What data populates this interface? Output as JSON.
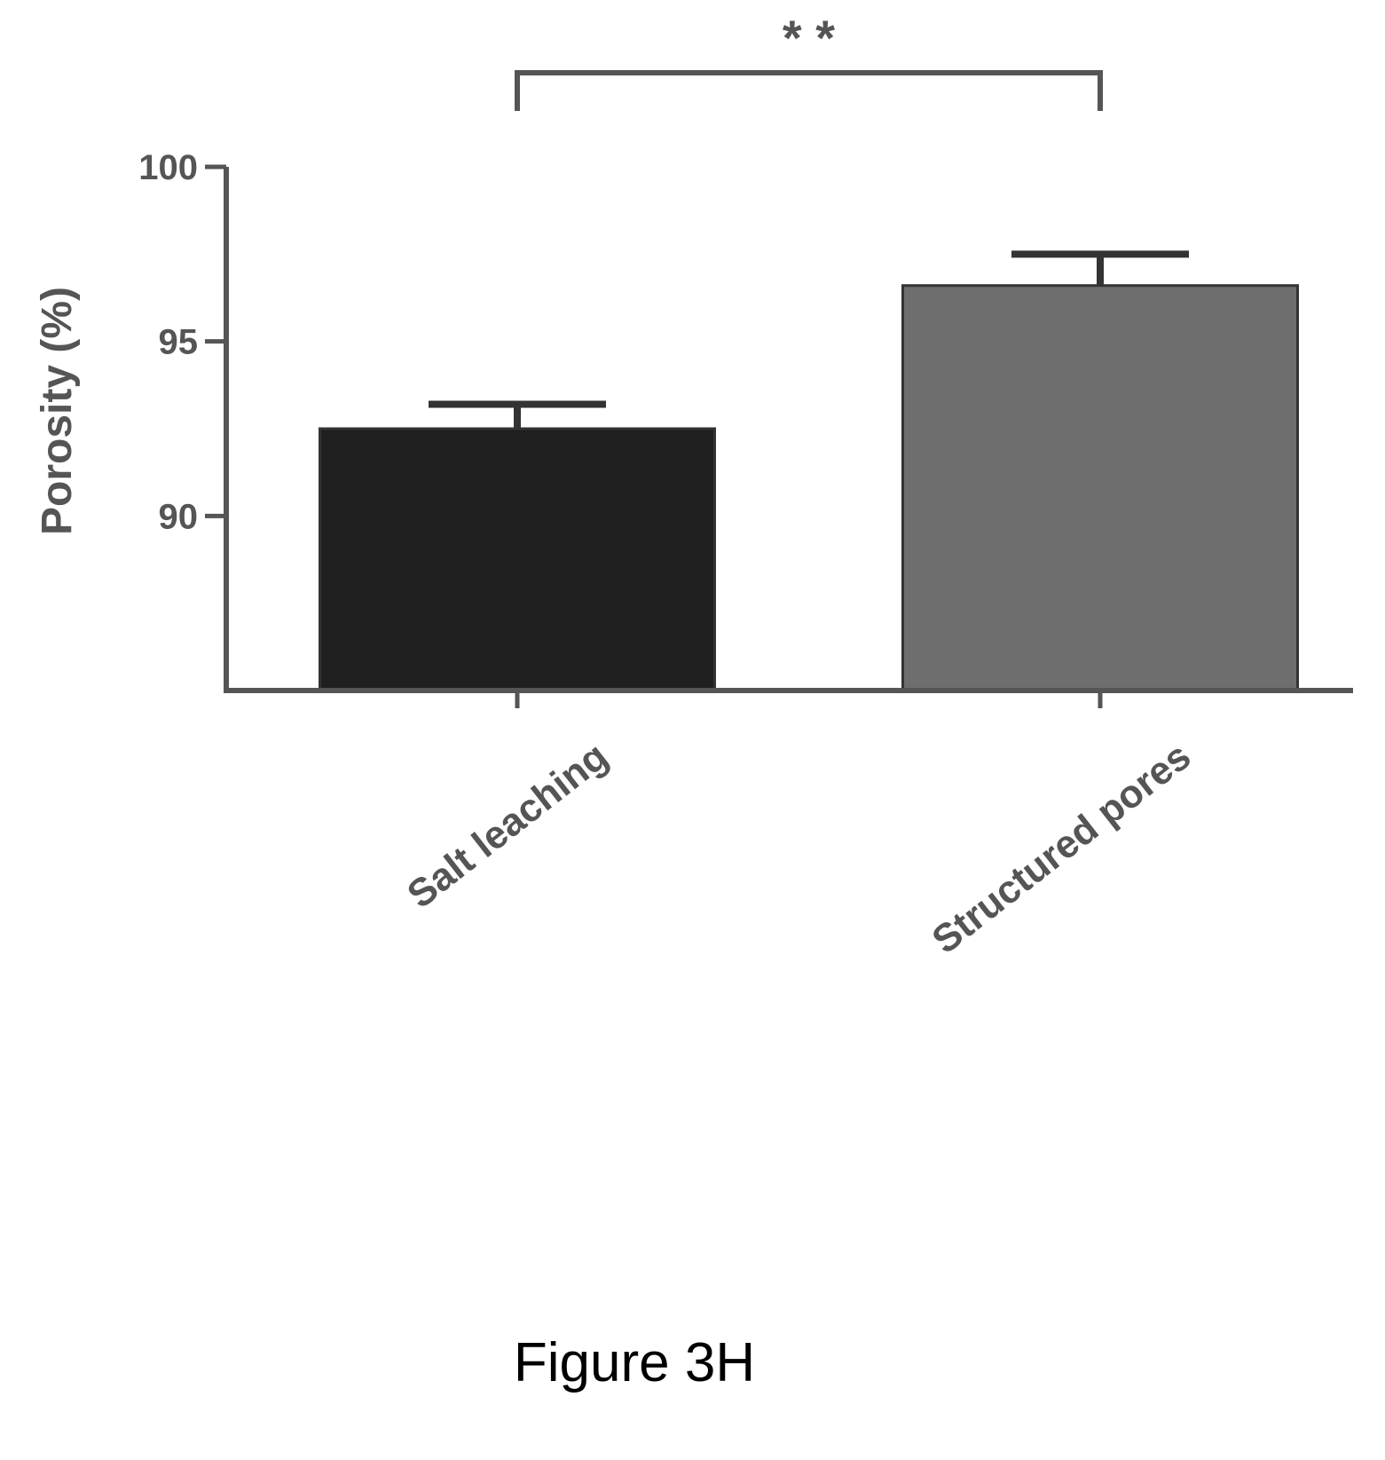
{
  "chart_data": {
    "type": "bar",
    "title": "",
    "xlabel": "",
    "ylabel": "Porosity (%)",
    "ylim": [
      85,
      100
    ],
    "yticks": [
      90,
      95,
      100
    ],
    "categories": [
      "Salt leaching",
      "Structured pores"
    ],
    "values": [
      92.5,
      96.6
    ],
    "error_upper": [
      0.7,
      0.9
    ],
    "colors": [
      "#1f1f1f",
      "#6e6e6e"
    ],
    "significance": {
      "label": "* *",
      "between": [
        0,
        1
      ]
    },
    "grid": false,
    "legend": "none"
  },
  "caption": "Figure 3H"
}
